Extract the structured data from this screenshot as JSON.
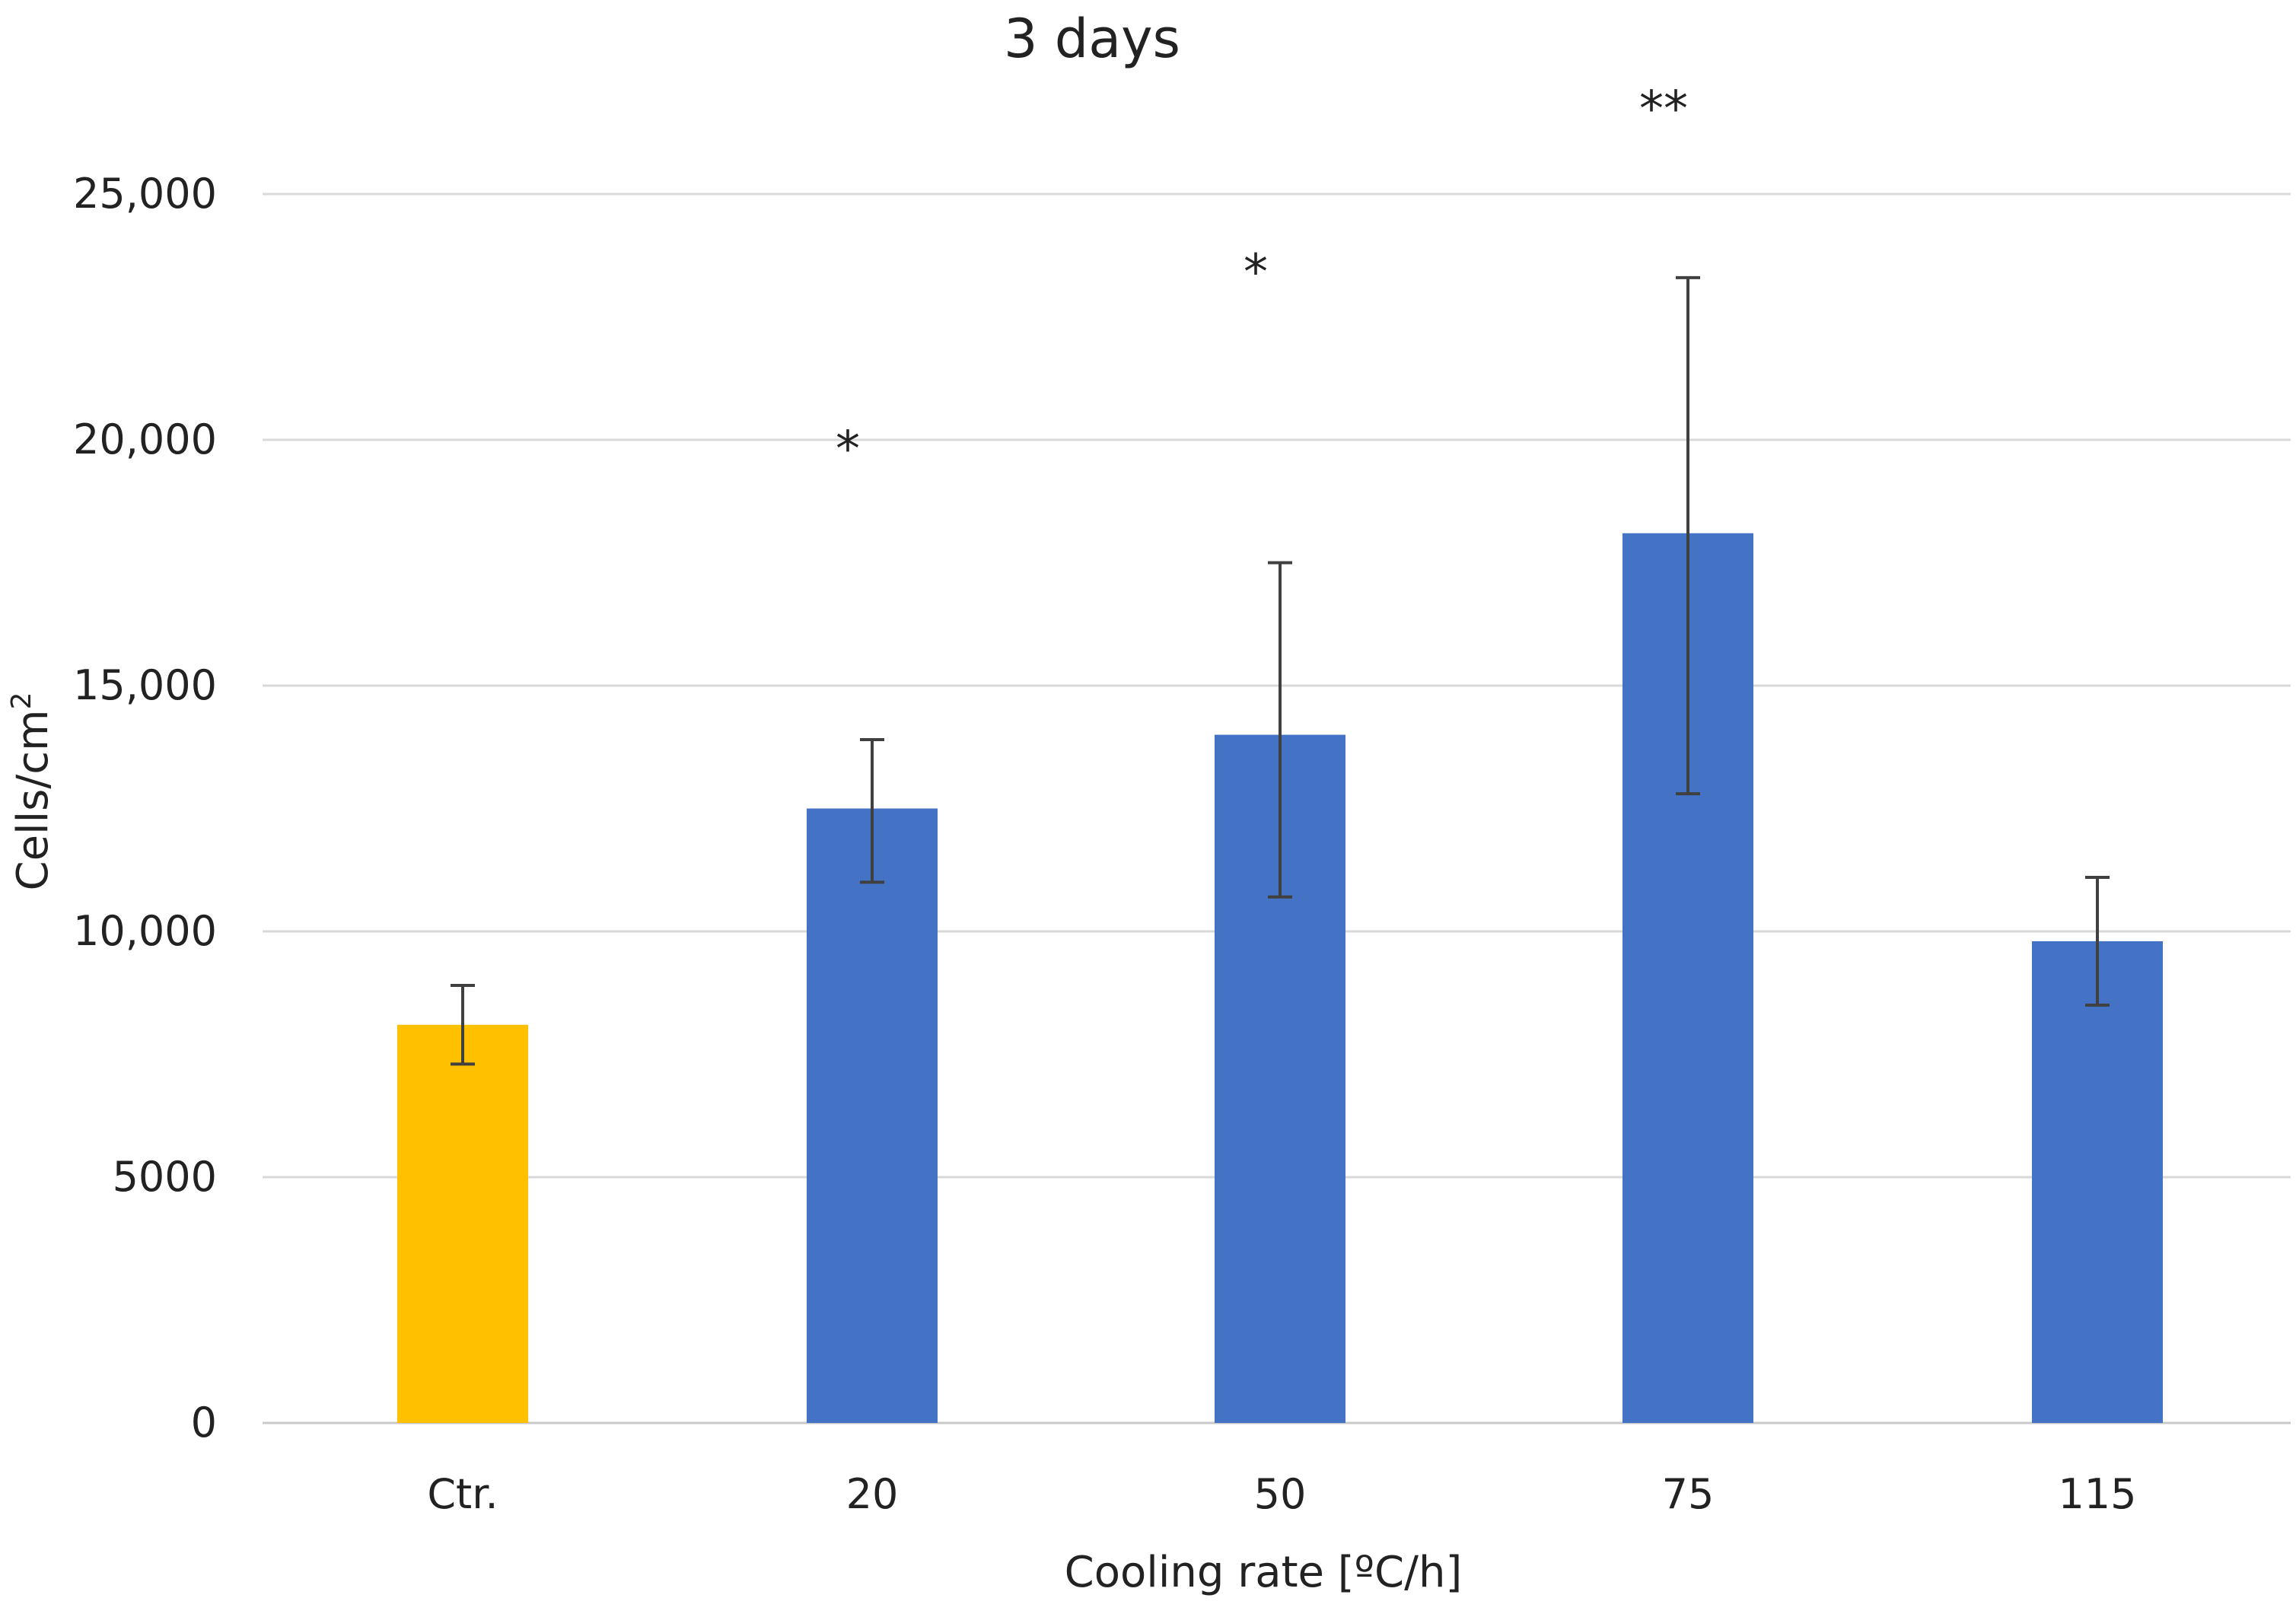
{
  "chart_data": {
    "type": "bar",
    "title": "3 days",
    "xlabel": "Cooling rate [ºC/h]",
    "ylabel": "Cells/cm",
    "ylabel_superscript": "2",
    "ylim": [
      0,
      25000
    ],
    "yticks": [
      0,
      5000,
      10000,
      15000,
      20000,
      25000
    ],
    "ytick_labels": [
      "0",
      "5000",
      "10,000",
      "15,000",
      "20,000",
      "25,000"
    ],
    "grid": true,
    "categories": [
      "Ctr.",
      "20",
      "50",
      "75",
      "115"
    ],
    "values": [
      8100,
      12500,
      14000,
      18100,
      9800
    ],
    "error_low": [
      7300,
      11000,
      10700,
      12800,
      8500
    ],
    "error_high": [
      8900,
      13900,
      17500,
      23300,
      11100
    ],
    "significance": [
      "",
      "*",
      "*",
      "**",
      ""
    ],
    "colors": {
      "control": "#FFC000",
      "series": "#4472C4",
      "error_bar": "#404040",
      "grid": "#d9d9d9",
      "text": "#222222"
    }
  }
}
